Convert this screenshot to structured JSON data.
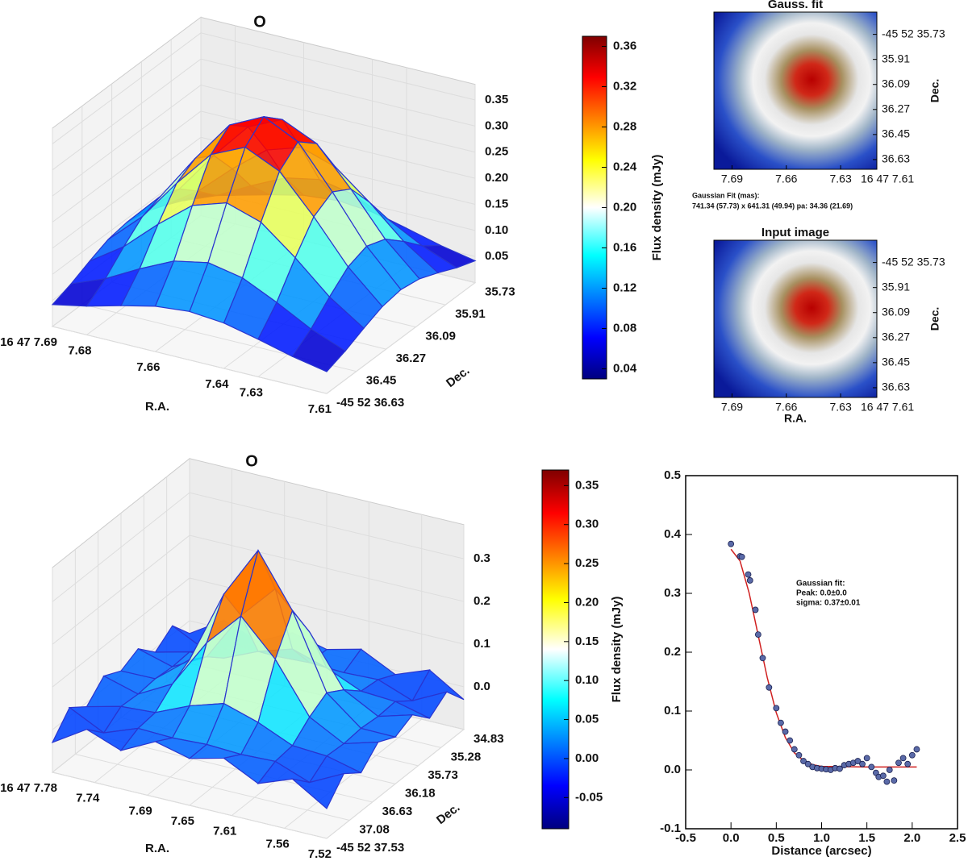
{
  "chart_data": [
    {
      "type": "surface",
      "title": "O",
      "xlabel": "R.A.",
      "ylabel": "Dec.",
      "xlim": [
        7.69,
        7.61
      ],
      "xticks": [
        {
          "value": 7.69,
          "label": "16 47 7.69"
        },
        7.68,
        7.66,
        7.64,
        7.63,
        7.61
      ],
      "ylim": [
        36.63,
        35.73
      ],
      "yticks": [
        {
          "value": 36.63,
          "label": "-45 52 36.63"
        },
        36.45,
        36.27,
        36.09,
        35.91,
        35.73
      ],
      "zlim": [
        0,
        0.38
      ],
      "zticks": [
        0.05,
        {
          "value": 0.1,
          "label": "0.10"
        },
        0.15,
        {
          "value": 0.2,
          "label": "0.20"
        },
        0.25,
        {
          "value": 0.3,
          "label": "0.30"
        },
        0.35
      ],
      "edge_color": "#2a35d0",
      "z": [
        [
          0.042,
          0.055,
          0.072,
          0.087,
          0.093,
          0.087,
          0.072,
          0.055,
          0.042
        ],
        [
          0.055,
          0.081,
          0.116,
          0.147,
          0.16,
          0.147,
          0.116,
          0.081,
          0.055
        ],
        [
          0.072,
          0.116,
          0.175,
          0.227,
          0.248,
          0.227,
          0.175,
          0.116,
          0.072
        ],
        [
          0.087,
          0.147,
          0.227,
          0.298,
          0.328,
          0.298,
          0.227,
          0.147,
          0.087
        ],
        [
          0.093,
          0.16,
          0.248,
          0.328,
          0.36,
          0.328,
          0.248,
          0.16,
          0.093
        ],
        [
          0.087,
          0.147,
          0.227,
          0.298,
          0.328,
          0.298,
          0.227,
          0.147,
          0.087
        ],
        [
          0.072,
          0.116,
          0.175,
          0.227,
          0.248,
          0.227,
          0.175,
          0.116,
          0.072
        ],
        [
          0.055,
          0.081,
          0.116,
          0.147,
          0.16,
          0.147,
          0.116,
          0.081,
          0.055
        ],
        [
          0.042,
          0.055,
          0.072,
          0.087,
          0.093,
          0.087,
          0.072,
          0.055,
          0.042
        ]
      ]
    },
    {
      "type": "colorbar",
      "label": "Flux density (mJy)",
      "colormap": "jet",
      "clim": [
        0.03,
        0.37
      ],
      "ticks": [
        0.04,
        0.08,
        0.12,
        0.16,
        {
          "value": 0.2,
          "label": "0.20"
        },
        0.24,
        0.28,
        0.32,
        0.36
      ]
    },
    {
      "type": "image",
      "title": "Gauss. fit",
      "ylabel": "Dec.",
      "xlim": [
        7.7,
        7.61
      ],
      "xticks": [
        7.69,
        7.66,
        7.63,
        {
          "value": 7.61,
          "label": "16 47 7.61"
        }
      ],
      "ylim": [
        35.57,
        36.7
      ],
      "yticks": [
        {
          "value": 35.73,
          "label": "-45 52 35.73"
        },
        35.91,
        36.09,
        36.27,
        36.45,
        36.63
      ],
      "annotation": [
        "Gaussian Fit (mas):",
        "741.34 (57.73) x 641.31 (49.94) pa: 34.36 (21.69)"
      ]
    },
    {
      "type": "image",
      "title": "Input image",
      "xlabel": "R.A.",
      "ylabel": "Dec.",
      "xlim": [
        7.7,
        7.61
      ],
      "xticks": [
        7.69,
        7.66,
        7.63,
        {
          "value": 7.61,
          "label": "16 47 7.61"
        }
      ],
      "ylim": [
        35.57,
        36.7
      ],
      "yticks": [
        {
          "value": 35.73,
          "label": "-45 52 35.73"
        },
        35.91,
        36.09,
        36.27,
        36.45,
        36.63
      ]
    },
    {
      "type": "surface",
      "title": "O",
      "xlabel": "R.A.",
      "ylabel": "Dec.",
      "xlim": [
        7.78,
        7.52
      ],
      "xticks": [
        {
          "value": 7.78,
          "label": "16 47 7.78"
        },
        7.74,
        7.69,
        7.65,
        7.61,
        7.56,
        7.52
      ],
      "ylim": [
        37.53,
        34.83
      ],
      "yticks": [
        {
          "value": 37.53,
          "label": "-45 52 37.53"
        },
        37.08,
        36.63,
        36.18,
        35.73,
        35.28,
        34.83
      ],
      "zlim": [
        -0.1,
        0.38
      ],
      "zticks": [
        {
          "value": 0,
          "label": "0.0"
        },
        0.1,
        0.2,
        0.3
      ],
      "edge_color": "#2a35d0",
      "z": [
        [
          -0.03,
          0.02,
          -0.01,
          0.03,
          0.01,
          0.03,
          -0.01,
          0.02,
          -0.03
        ],
        [
          0.02,
          -0.02,
          0.01,
          0.007,
          0.011,
          0.007,
          0.01,
          -0.02,
          0.02
        ],
        [
          -0.01,
          0.01,
          0.015,
          0.05,
          0.075,
          0.05,
          0.015,
          0.01,
          -0.01
        ],
        [
          0.03,
          0.007,
          0.05,
          0.166,
          0.248,
          0.166,
          0.05,
          0.007,
          0.03
        ],
        [
          0.01,
          0.011,
          0.075,
          0.248,
          0.37,
          0.248,
          0.075,
          0.011,
          0.01
        ],
        [
          0.03,
          0.007,
          0.05,
          0.166,
          0.248,
          0.166,
          0.05,
          0.007,
          0.03
        ],
        [
          -0.01,
          0.01,
          0.015,
          0.05,
          0.075,
          0.05,
          0.015,
          0.01,
          -0.01
        ],
        [
          0.02,
          -0.02,
          0.01,
          0.007,
          0.011,
          0.007,
          0.01,
          -0.02,
          0.02
        ],
        [
          -0.03,
          0.02,
          -0.01,
          0.03,
          0.01,
          0.03,
          -0.01,
          0.02,
          -0.03
        ]
      ]
    },
    {
      "type": "colorbar",
      "label": "Flux density (mJy)",
      "colormap": "jet",
      "clim": [
        -0.09,
        0.37
      ],
      "ticks": [
        -0.05,
        {
          "value": 0,
          "label": "0.00"
        },
        0.05,
        {
          "value": 0.1,
          "label": "0.10"
        },
        0.15,
        {
          "value": 0.2,
          "label": "0.20"
        },
        0.25,
        {
          "value": 0.3,
          "label": "0.30"
        },
        0.35
      ]
    },
    {
      "type": "scatter",
      "xlabel": "Distance (arcsec)",
      "xlim": [
        -0.5,
        2.5
      ],
      "xticks": [
        -0.5,
        {
          "value": 0,
          "label": "0.0"
        },
        0.5,
        {
          "value": 1,
          "label": "1.0"
        },
        1.5,
        {
          "value": 2,
          "label": "2.0"
        },
        2.5
      ],
      "ylim": [
        -0.1,
        0.5
      ],
      "yticks": [
        -0.1,
        {
          "value": 0,
          "label": "0.0"
        },
        0.1,
        0.2,
        0.3,
        0.4,
        0.5
      ],
      "annotation": [
        "Gaussian fit:",
        "Peak: 0.0±0.0",
        "sigma: 0.37±0.01"
      ],
      "points": {
        "color": "#5a6aa8",
        "x": [
          0.0,
          0.1,
          0.12,
          0.19,
          0.21,
          0.27,
          0.3,
          0.35,
          0.42,
          0.5,
          0.55,
          0.6,
          0.65,
          0.7,
          0.75,
          0.8,
          0.85,
          0.9,
          0.95,
          1.0,
          1.05,
          1.1,
          1.15,
          1.2,
          1.25,
          1.3,
          1.35,
          1.4,
          1.45,
          1.5,
          1.55,
          1.6,
          1.63,
          1.68,
          1.72,
          1.75,
          1.8,
          1.85,
          1.9,
          1.95,
          2.0,
          2.05
        ],
        "values": [
          0.384,
          0.363,
          0.362,
          0.332,
          0.322,
          0.272,
          0.23,
          0.19,
          0.14,
          0.105,
          0.08,
          0.065,
          0.05,
          0.035,
          0.025,
          0.015,
          0.01,
          0.005,
          0.003,
          0.002,
          0.001,
          0.0,
          0.003,
          0.002,
          0.008,
          0.01,
          0.012,
          0.015,
          0.01,
          0.02,
          0.005,
          -0.005,
          -0.012,
          -0.01,
          -0.02,
          0.0,
          -0.018,
          0.012,
          0.02,
          0.01,
          0.025,
          0.035
        ]
      },
      "fit": {
        "color": "#d02020",
        "x": [
          0,
          0.1,
          0.2,
          0.3,
          0.4,
          0.5,
          0.6,
          0.7,
          0.8,
          0.9,
          1.0,
          1.5,
          2.05
        ],
        "values": [
          0.375,
          0.355,
          0.301,
          0.229,
          0.157,
          0.097,
          0.055,
          0.029,
          0.016,
          0.009,
          0.006,
          0.005,
          0.005
        ]
      }
    }
  ]
}
